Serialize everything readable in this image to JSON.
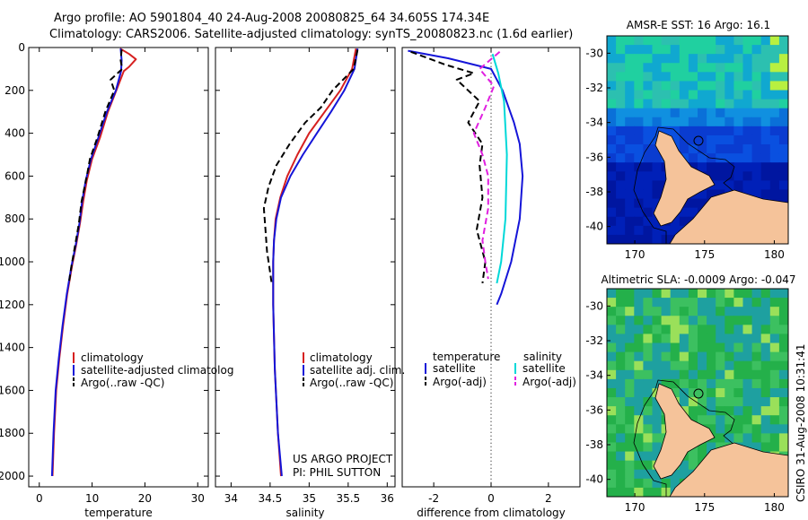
{
  "header": {
    "line1": "Argo profile: AO 5901804_40 24-Aug-2008 20080825_64 34.605S 174.34E",
    "line2": "Climatology: CARS2006. Satellite-adjusted climatology: synTS_20080823.nc (1.6d earlier)"
  },
  "colors": {
    "clim": "#d62020",
    "sat": "#1515d8",
    "argo": "#000000",
    "sat_sal": "#00d8d8",
    "argo_sal": "#e020e0"
  },
  "chart_data": [
    {
      "type": "line",
      "xlabel": "temperature",
      "xlim": [
        -2,
        32
      ],
      "ylim": [
        0,
        2050
      ],
      "xticks": [
        "0",
        "10",
        "20",
        "30"
      ],
      "yticks": [
        "0",
        "200",
        "400",
        "600",
        "800",
        "1000",
        "1200",
        "1400",
        "1600",
        "1800",
        "2000"
      ],
      "series": [
        {
          "name": "climatology",
          "color": "#d62020",
          "dash": "",
          "points": [
            [
              15.3,
              5
            ],
            [
              17,
              30
            ],
            [
              18.3,
              55
            ],
            [
              17,
              90
            ],
            [
              16,
              110
            ],
            [
              14.6,
              200
            ],
            [
              13,
              300
            ],
            [
              11.5,
              420
            ],
            [
              10,
              520
            ],
            [
              9,
              620
            ],
            [
              8.3,
              720
            ],
            [
              7.7,
              820
            ],
            [
              7,
              920
            ],
            [
              6.2,
              1020
            ],
            [
              5.3,
              1150
            ],
            [
              4.5,
              1300
            ],
            [
              3.8,
              1450
            ],
            [
              3.2,
              1600
            ],
            [
              2.8,
              1800
            ],
            [
              2.5,
              2000
            ]
          ]
        },
        {
          "name": "satellite-adjusted climatology",
          "color": "#1515d8",
          "dash": "",
          "points": [
            [
              15.4,
              5
            ],
            [
              15.6,
              60
            ],
            [
              15.5,
              110
            ],
            [
              14.5,
              200
            ],
            [
              12.8,
              300
            ],
            [
              11.2,
              420
            ],
            [
              9.8,
              520
            ],
            [
              8.8,
              620
            ],
            [
              8.1,
              720
            ],
            [
              7.6,
              820
            ],
            [
              6.9,
              920
            ],
            [
              6.1,
              1020
            ],
            [
              5.2,
              1150
            ],
            [
              4.4,
              1300
            ],
            [
              3.7,
              1450
            ],
            [
              3.1,
              1600
            ],
            [
              2.7,
              1800
            ],
            [
              2.4,
              2000
            ]
          ]
        },
        {
          "name": "Argo(..raw -QC)",
          "color": "#000000",
          "dash": "7,4",
          "points": [
            [
              15.6,
              10
            ],
            [
              15.4,
              60
            ],
            [
              15.7,
              100
            ],
            [
              13.5,
              150
            ],
            [
              14.2,
              200
            ],
            [
              12.5,
              300
            ],
            [
              11,
              420
            ],
            [
              9.6,
              520
            ],
            [
              9,
              600
            ],
            [
              8,
              720
            ],
            [
              7.5,
              820
            ],
            [
              6.8,
              920
            ],
            [
              6.1,
              1020
            ],
            [
              5.6,
              1100
            ]
          ]
        }
      ]
    },
    {
      "type": "line",
      "xlabel": "salinity",
      "xlim": [
        33.8,
        36.1
      ],
      "ylim": [
        0,
        2050
      ],
      "xticks": [
        "34",
        "34.5",
        "35",
        "35.5",
        "36"
      ],
      "yticks": [
        "0",
        "200",
        "400",
        "600",
        "800",
        "1000",
        "1200",
        "1400",
        "1600",
        "1800",
        "2000"
      ],
      "series": [
        {
          "name": "climatology",
          "color": "#d62020",
          "dash": "",
          "points": [
            [
              35.6,
              5
            ],
            [
              35.55,
              100
            ],
            [
              35.4,
              200
            ],
            [
              35.2,
              300
            ],
            [
              35.0,
              400
            ],
            [
              34.85,
              500
            ],
            [
              34.72,
              600
            ],
            [
              34.63,
              700
            ],
            [
              34.57,
              800
            ],
            [
              34.55,
              900
            ],
            [
              34.54,
              1000
            ],
            [
              34.54,
              1200
            ],
            [
              34.56,
              1500
            ],
            [
              34.6,
              1800
            ],
            [
              34.64,
              2000
            ]
          ]
        },
        {
          "name": "satellite adj. clim.",
          "color": "#1515d8",
          "dash": "",
          "points": [
            [
              35.62,
              5
            ],
            [
              35.58,
              100
            ],
            [
              35.45,
              200
            ],
            [
              35.28,
              300
            ],
            [
              35.1,
              400
            ],
            [
              34.92,
              500
            ],
            [
              34.76,
              600
            ],
            [
              34.64,
              700
            ],
            [
              34.58,
              800
            ],
            [
              34.55,
              900
            ],
            [
              34.54,
              1000
            ],
            [
              34.54,
              1200
            ],
            [
              34.56,
              1500
            ],
            [
              34.6,
              1800
            ],
            [
              34.65,
              2000
            ]
          ]
        },
        {
          "name": "Argo(..raw -QC)",
          "color": "#000000",
          "dash": "7,4",
          "points": [
            [
              35.62,
              10
            ],
            [
              35.57,
              100
            ],
            [
              35.3,
              200
            ],
            [
              35.15,
              280
            ],
            [
              34.95,
              350
            ],
            [
              34.75,
              450
            ],
            [
              34.58,
              550
            ],
            [
              34.48,
              650
            ],
            [
              34.42,
              750
            ],
            [
              34.44,
              850
            ],
            [
              34.46,
              950
            ],
            [
              34.5,
              1050
            ],
            [
              34.52,
              1100
            ]
          ]
        }
      ]
    },
    {
      "type": "line",
      "xlabel": "difference from climatology",
      "xlim": [
        -3.1,
        3.1
      ],
      "ylim": [
        0,
        2050
      ],
      "xticks": [
        "-2",
        "0",
        "2"
      ],
      "yticks": [],
      "series": [
        {
          "name": "satellite",
          "group": "temperature",
          "color": "#1515d8",
          "dash": "",
          "points": [
            [
              -2.9,
              15
            ],
            [
              -1.5,
              50
            ],
            [
              0,
              100
            ],
            [
              0.4,
              200
            ],
            [
              0.8,
              350
            ],
            [
              1.0,
              450
            ],
            [
              1.1,
              600
            ],
            [
              1.0,
              800
            ],
            [
              0.7,
              1000
            ],
            [
              0.35,
              1150
            ],
            [
              0.2,
              1200
            ]
          ]
        },
        {
          "name": "satellite",
          "group": "salinity",
          "color": "#00d8d8",
          "dash": "",
          "points": [
            [
              0.05,
              30
            ],
            [
              0.25,
              120
            ],
            [
              0.45,
              250
            ],
            [
              0.55,
              500
            ],
            [
              0.5,
              800
            ],
            [
              0.35,
              1000
            ],
            [
              0.2,
              1100
            ]
          ]
        },
        {
          "name": "Argo(-adj)",
          "group": "temperature",
          "color": "#000000",
          "dash": "7,4",
          "points": [
            [
              -2.8,
              20
            ],
            [
              -1.6,
              80
            ],
            [
              -0.6,
              120
            ],
            [
              -1.2,
              150
            ],
            [
              -0.4,
              250
            ],
            [
              -0.8,
              350
            ],
            [
              -0.3,
              450
            ],
            [
              -0.4,
              550
            ],
            [
              -0.3,
              700
            ],
            [
              -0.5,
              850
            ],
            [
              -0.2,
              1000
            ],
            [
              -0.3,
              1100
            ]
          ]
        },
        {
          "name": "Argo(-adj)",
          "group": "salinity",
          "color": "#e020e0",
          "dash": "7,4",
          "points": [
            [
              0.3,
              20
            ],
            [
              -0.4,
              100
            ],
            [
              0.1,
              180
            ],
            [
              -0.2,
              280
            ],
            [
              -0.6,
              400
            ],
            [
              -0.3,
              500
            ],
            [
              -0.1,
              600
            ],
            [
              -0.1,
              750
            ],
            [
              -0.3,
              900
            ],
            [
              -0.2,
              1000
            ],
            [
              -0.1,
              1080
            ]
          ]
        }
      ]
    },
    {
      "type": "heatmap",
      "title": "AMSR-E SST: 16 Argo: 16.1",
      "xticks": [
        "170",
        "175",
        "180"
      ],
      "yticks": [
        "-30",
        "-32",
        "-34",
        "-36",
        "-38",
        "-40"
      ]
    },
    {
      "type": "heatmap",
      "title": "Altimetric SLA: -0.0009 Argo: -0.047",
      "xticks": [
        "170",
        "175",
        "180"
      ],
      "yticks": [
        "-30",
        "-32",
        "-34",
        "-36",
        "-38",
        "-40"
      ]
    }
  ],
  "legends": {
    "temperature": [
      "climatology",
      "satellite-adjusted climatolog",
      "Argo(..raw -QC)"
    ],
    "salinity": [
      "climatology",
      "satellite adj. clim.",
      "Argo(..raw -QC)"
    ],
    "difference": {
      "col1_header": "temperature",
      "col2_header": "salinity",
      "col1": [
        "satellite",
        "Argo(-adj)"
      ],
      "col2": [
        "satellite",
        "Argo(-adj)"
      ]
    }
  },
  "credits": {
    "project": "US ARGO PROJECT",
    "pi": "PI: PHIL SUTTON"
  },
  "stamp": "CSIRO 31-Aug-2008 10:31:41"
}
